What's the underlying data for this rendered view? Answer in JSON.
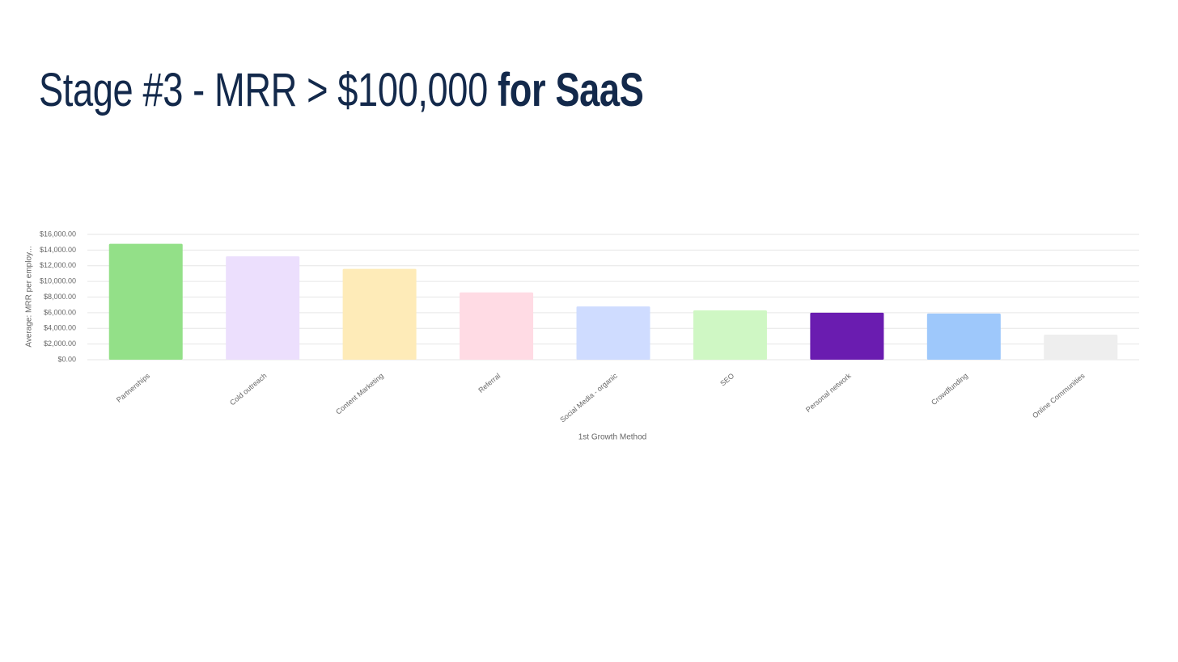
{
  "header": {
    "title": "Stage #3 - MRR > $100,000",
    "title_emphasis": "for SaaS"
  },
  "chart_data": {
    "type": "bar",
    "x_label": "1st Growth Method",
    "y_label": "Average: MRR per employ...",
    "categories": [
      "Partnerships",
      "Cold outreach",
      "Content Marketing",
      "Referral",
      "Social Media - organic",
      "SEO",
      "Personal network",
      "Crowdfunding",
      "Online Communities"
    ],
    "values": [
      14800,
      13200,
      11600,
      8600,
      6800,
      6300,
      6000,
      5900,
      3200
    ],
    "colors": [
      "#93e088",
      "#ecdffd",
      "#feebb8",
      "#ffdbe4",
      "#cfdcff",
      "#cff7c4",
      "#6a1cb0",
      "#9ec8fb",
      "#eeeeee"
    ],
    "ylim": [
      0,
      16000
    ],
    "yticks": [
      {
        "value": 0,
        "label": "$0.00"
      },
      {
        "value": 2000,
        "label": "$2,000.00"
      },
      {
        "value": 4000,
        "label": "$4,000.00"
      },
      {
        "value": 6000,
        "label": "$6,000.00"
      },
      {
        "value": 8000,
        "label": "$8,000.00"
      },
      {
        "value": 10000,
        "label": "$10,000.00"
      },
      {
        "value": 12000,
        "label": "$12,000.00"
      },
      {
        "value": 14000,
        "label": "$14,000.00"
      },
      {
        "value": 16000,
        "label": "$16,000.00"
      }
    ],
    "grid": true
  }
}
